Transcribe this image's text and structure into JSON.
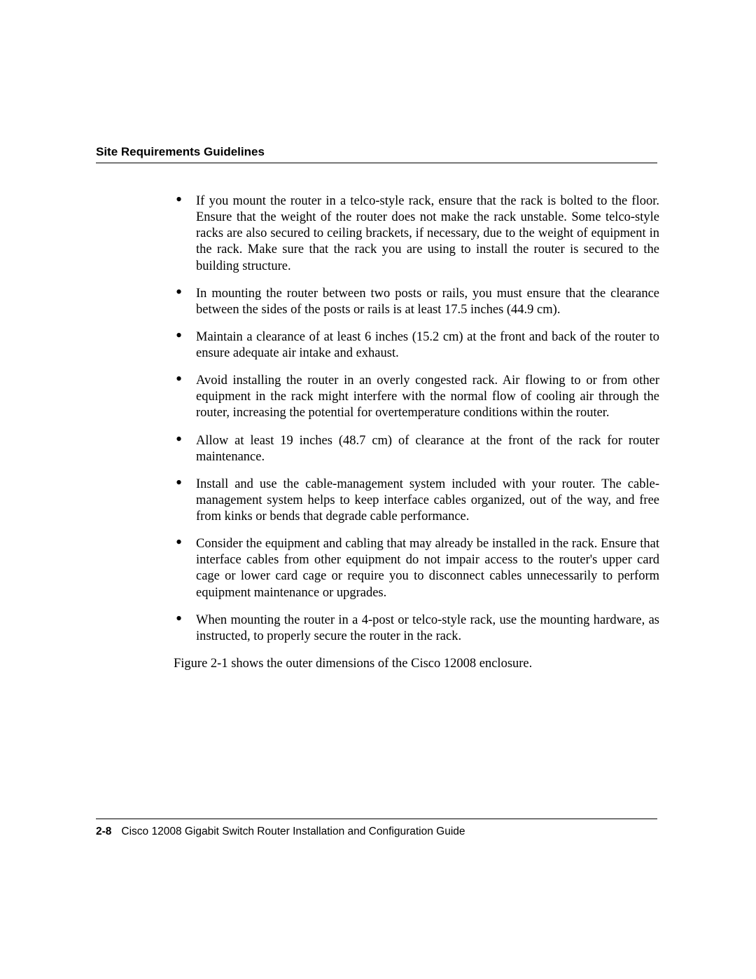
{
  "header": {
    "title": "Site Requirements Guidelines"
  },
  "content": {
    "bullets": [
      "If you mount the router in a telco-style rack, ensure that the rack is bolted to the floor. Ensure that the weight of the router does not make the rack unstable. Some telco-style racks are also secured to ceiling brackets, if necessary, due to the weight of equipment in the rack. Make sure that the rack you are using to install the router is secured to the building structure.",
      "In mounting the router between two posts or rails, you must ensure that the clearance between the sides of the posts or rails is at least 17.5 inches (44.9 cm).",
      "Maintain a clearance of at least 6 inches (15.2 cm) at the front and back of the router to ensure adequate air intake and exhaust.",
      "Avoid installing the router in an overly congested rack. Air flowing to or from other equipment in the rack might interfere with the normal flow of cooling air through the router, increasing the potential for overtemperature conditions within the router.",
      "Allow at least 19 inches (48.7 cm) of clearance at the front of the rack for router maintenance.",
      "Install and use the cable-management system included with your router. The cable- management system helps to keep interface cables organized, out of the way, and free from kinks or bends that degrade cable performance.",
      "Consider the equipment and cabling that may already be installed in the rack. Ensure that interface cables from other equipment do not impair access to the router's upper card cage or lower card cage or require you to disconnect cables unnecessarily to perform equipment maintenance or upgrades.",
      "When mounting the router in a 4-post or telco-style rack, use the mounting hardware, as instructed, to properly secure the router in the rack."
    ],
    "closing": "Figure 2-1 shows the outer dimensions of the Cisco 12008 enclosure."
  },
  "footer": {
    "page_number": "2-8",
    "doc_title": "Cisco 12008 Gigabit Switch Router Installation and Configuration Guide"
  }
}
